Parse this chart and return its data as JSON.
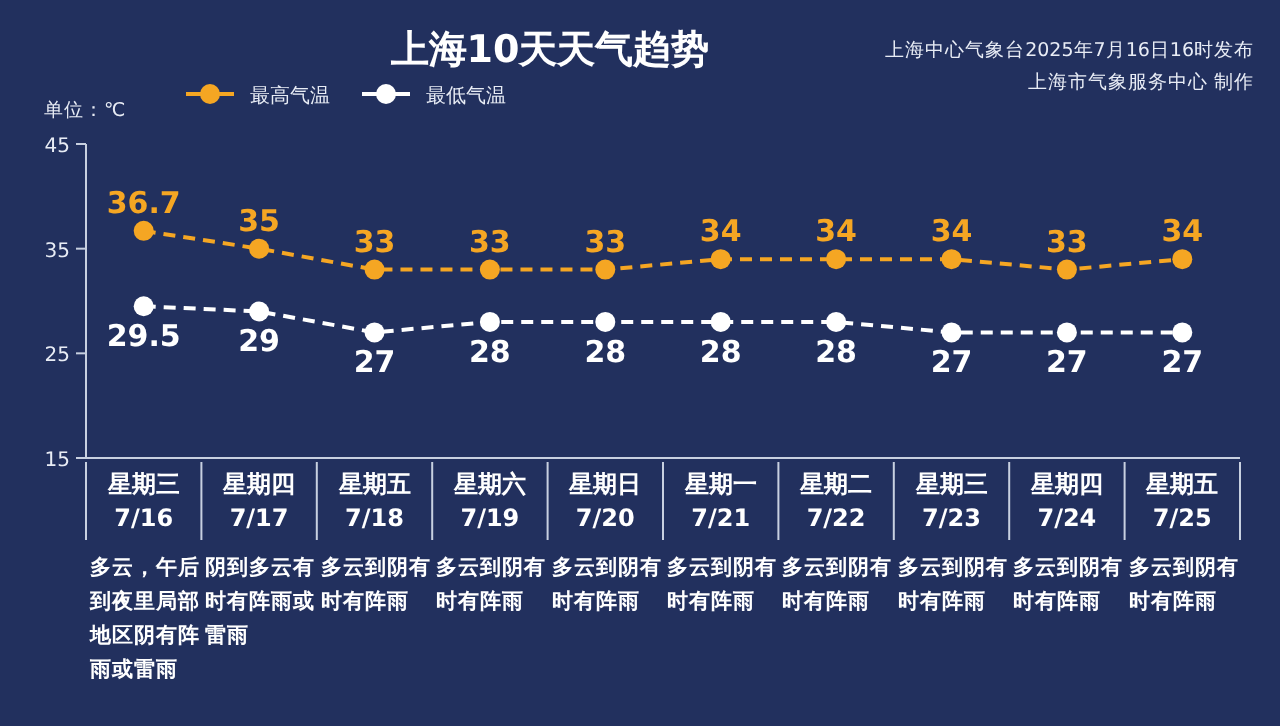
{
  "chart_data": {
    "type": "line",
    "title": "上海10天天气趋势",
    "ylabel": "单位：℃",
    "categories": [
      "星期三\n7/16",
      "星期四\n7/17",
      "星期五\n7/18",
      "星期六\n7/19",
      "星期日\n7/20",
      "星期一\n7/21",
      "星期二\n7/22",
      "星期三\n7/23",
      "星期四\n7/24",
      "星期五\n7/25"
    ],
    "series": [
      {
        "name": "最高气温",
        "color": "#f5a623",
        "values": [
          36.7,
          35,
          33,
          33,
          33,
          34,
          34,
          34,
          33,
          34
        ]
      },
      {
        "name": "最低气温",
        "color": "#ffffff",
        "values": [
          29.5,
          29,
          27,
          28,
          28,
          28,
          28,
          27,
          27,
          27
        ]
      }
    ],
    "ylim": [
      15,
      45
    ],
    "yticks": [
      15,
      25,
      35,
      45
    ],
    "grid": false,
    "legend": "top left",
    "marker": "circle",
    "line_style": "dashed",
    "data_labels": true,
    "annotations": [
      "上海中心气象台2025年7月16日16时发布",
      "上海市气象服务中心 制作",
      "多云，午后到夜里局部地区阴有阵雨或雷雨",
      "阴到多云有时有阵雨或雷雨",
      "多云到阴有时有阵雨",
      "多云到阴有时有阵雨",
      "多云到阴有时有阵雨",
      "多云到阴有时有阵雨",
      "多云到阴有时有阵雨",
      "多云到阴有时有阵雨",
      "多云到阴有时有阵雨",
      "多云到阴有时有阵雨"
    ]
  }
}
